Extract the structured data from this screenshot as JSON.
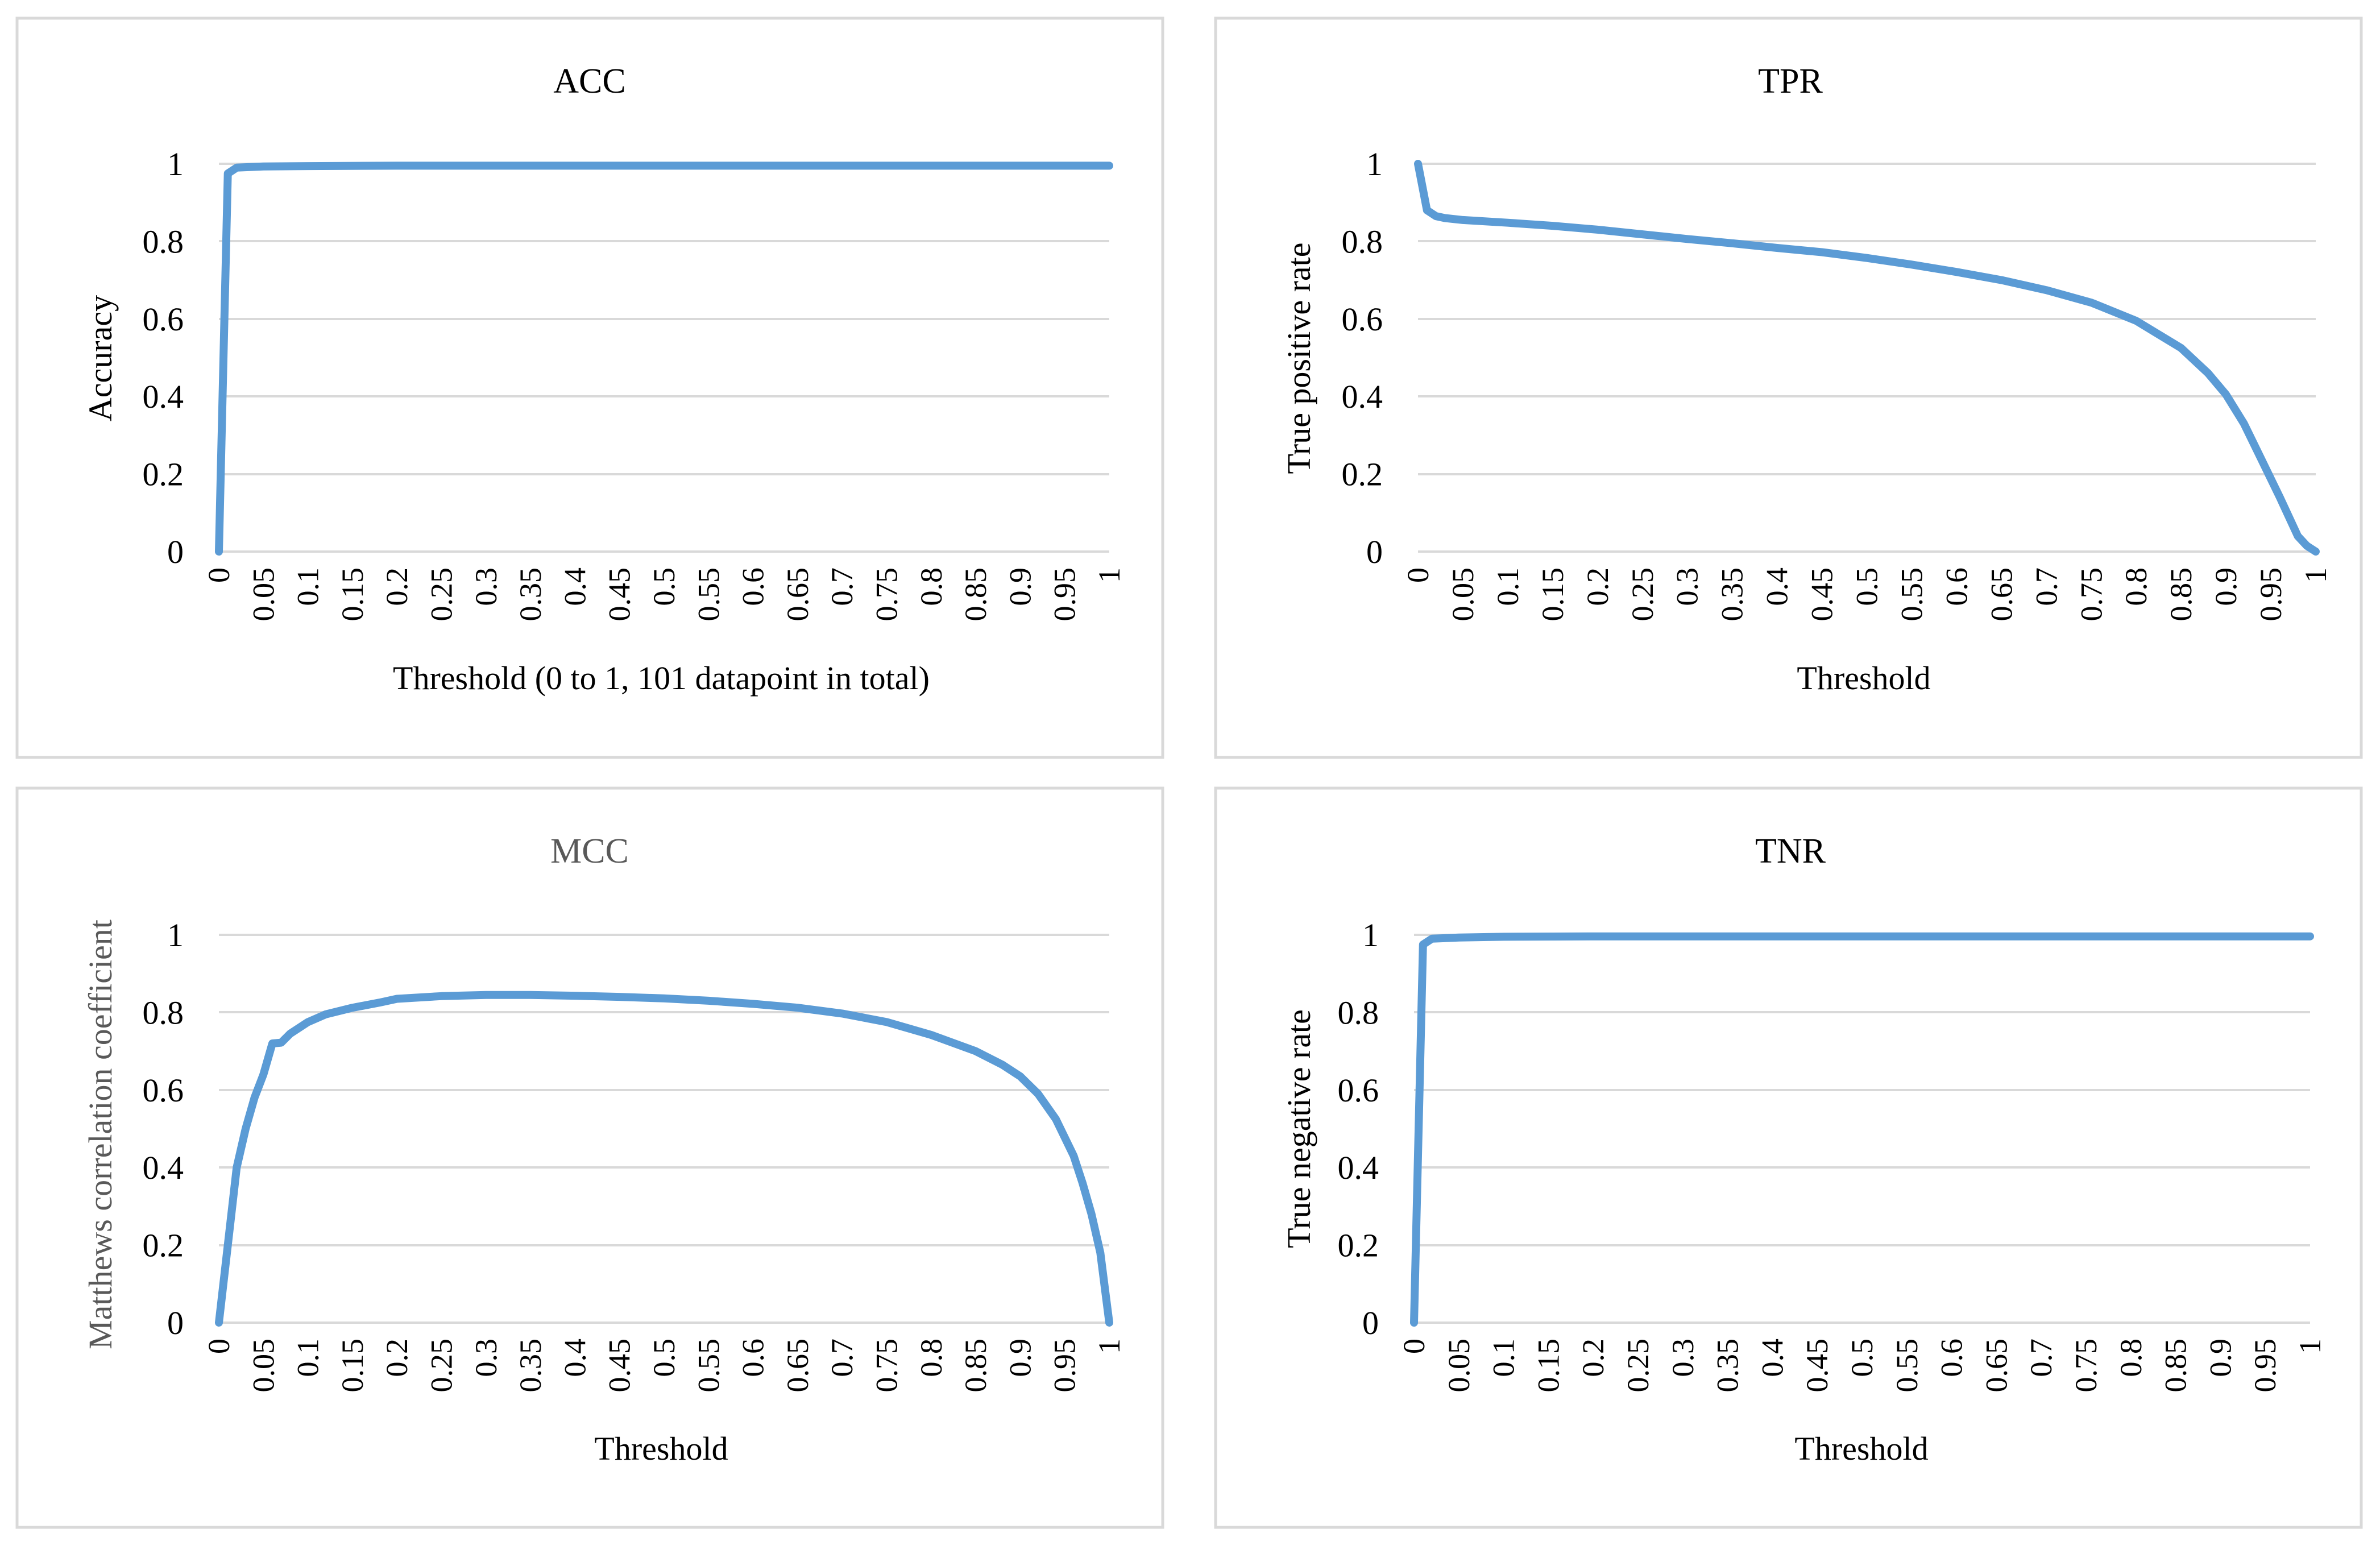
{
  "chart_data": [
    {
      "id": "acc",
      "type": "line",
      "title": "ACC",
      "xlabel": "Threshold (0 to 1, 101 datapoint in total)",
      "ylabel": "Accuracy",
      "ylim": [
        0,
        1
      ],
      "grid": true,
      "yticks": [
        "0",
        "0.2",
        "0.4",
        "0.6",
        "0.8",
        "1"
      ],
      "xticks": [
        "0",
        "0.05",
        "0.1",
        "0.15",
        "0.2",
        "0.25",
        "0.3",
        "0.35",
        "0.4",
        "0.45",
        "0.5",
        "0.55",
        "0.6",
        "0.65",
        "0.7",
        "0.75",
        "0.8",
        "0.85",
        "0.9",
        "0.95",
        "1"
      ],
      "series": [
        {
          "name": "ACC",
          "color": "#5b9bd5",
          "x": [
            0,
            0.01,
            0.02,
            0.05,
            0.1,
            0.2,
            0.3,
            0.4,
            0.5,
            0.6,
            0.7,
            0.8,
            0.9,
            0.95,
            1
          ],
          "y": [
            0,
            0.975,
            0.99,
            0.993,
            0.994,
            0.995,
            0.995,
            0.995,
            0.995,
            0.995,
            0.995,
            0.995,
            0.995,
            0.995,
            0.995
          ]
        }
      ]
    },
    {
      "id": "tpr",
      "type": "line",
      "title": "TPR",
      "xlabel": "Threshold",
      "ylabel": "True positive rate",
      "ylim": [
        0,
        1
      ],
      "grid": true,
      "yticks": [
        "0",
        "0.2",
        "0.4",
        "0.6",
        "0.8",
        "1"
      ],
      "xticks": [
        "0",
        "0.05",
        "0.1",
        "0.15",
        "0.2",
        "0.25",
        "0.3",
        "0.35",
        "0.4",
        "0.45",
        "0.5",
        "0.55",
        "0.6",
        "0.65",
        "0.7",
        "0.75",
        "0.8",
        "0.85",
        "0.9",
        "0.95",
        "1"
      ],
      "series": [
        {
          "name": "TPR",
          "color": "#5b9bd5",
          "x": [
            0,
            0.01,
            0.02,
            0.03,
            0.05,
            0.1,
            0.15,
            0.2,
            0.25,
            0.3,
            0.35,
            0.4,
            0.45,
            0.5,
            0.55,
            0.6,
            0.65,
            0.7,
            0.75,
            0.8,
            0.85,
            0.88,
            0.9,
            0.92,
            0.94,
            0.96,
            0.98,
            0.99,
            1
          ],
          "y": [
            1,
            0.88,
            0.865,
            0.86,
            0.855,
            0.848,
            0.84,
            0.83,
            0.818,
            0.806,
            0.795,
            0.783,
            0.772,
            0.757,
            0.74,
            0.721,
            0.7,
            0.674,
            0.642,
            0.595,
            0.525,
            0.46,
            0.405,
            0.33,
            0.235,
            0.14,
            0.04,
            0.015,
            0
          ]
        }
      ]
    },
    {
      "id": "mcc",
      "type": "line",
      "title": "MCC",
      "xlabel": "Threshold",
      "ylabel": "Matthews correlation coefficient",
      "ylim": [
        0,
        1
      ],
      "grid": true,
      "yticks": [
        "0",
        "0.2",
        "0.4",
        "0.6",
        "0.8",
        "1"
      ],
      "xticks": [
        "0",
        "0.05",
        "0.1",
        "0.15",
        "0.2",
        "0.25",
        "0.3",
        "0.35",
        "0.4",
        "0.45",
        "0.5",
        "0.55",
        "0.6",
        "0.65",
        "0.7",
        "0.75",
        "0.8",
        "0.85",
        "0.9",
        "0.95",
        "1"
      ],
      "series": [
        {
          "name": "MCC",
          "color": "#5b9bd5",
          "x": [
            0,
            0.01,
            0.02,
            0.03,
            0.04,
            0.05,
            0.06,
            0.07,
            0.08,
            0.1,
            0.12,
            0.15,
            0.18,
            0.2,
            0.25,
            0.3,
            0.35,
            0.4,
            0.45,
            0.5,
            0.55,
            0.6,
            0.65,
            0.7,
            0.75,
            0.8,
            0.85,
            0.88,
            0.9,
            0.92,
            0.94,
            0.96,
            0.97,
            0.98,
            0.99,
            1
          ],
          "y": [
            0,
            0.2,
            0.4,
            0.5,
            0.58,
            0.64,
            0.72,
            0.722,
            0.745,
            0.775,
            0.795,
            0.812,
            0.825,
            0.835,
            0.842,
            0.845,
            0.845,
            0.843,
            0.84,
            0.836,
            0.83,
            0.822,
            0.812,
            0.797,
            0.775,
            0.742,
            0.7,
            0.665,
            0.635,
            0.59,
            0.525,
            0.43,
            0.36,
            0.28,
            0.18,
            0
          ]
        }
      ]
    },
    {
      "id": "tnr",
      "type": "line",
      "title": "TNR",
      "xlabel": "Threshold",
      "ylabel": "True negative rate",
      "ylim": [
        0,
        1
      ],
      "grid": true,
      "yticks": [
        "0",
        "0.2",
        "0.4",
        "0.6",
        "0.8",
        "1"
      ],
      "xticks": [
        "0",
        "0.05",
        "0.1",
        "0.15",
        "0.2",
        "0.25",
        "0.3",
        "0.35",
        "0.4",
        "0.45",
        "0.5",
        "0.55",
        "0.6",
        "0.65",
        "0.7",
        "0.75",
        "0.8",
        "0.85",
        "0.9",
        "0.95",
        "1"
      ],
      "series": [
        {
          "name": "TNR",
          "color": "#5b9bd5",
          "x": [
            0,
            0.01,
            0.02,
            0.05,
            0.1,
            0.2,
            0.3,
            0.4,
            0.5,
            0.6,
            0.7,
            0.8,
            0.9,
            0.95,
            1
          ],
          "y": [
            0,
            0.975,
            0.99,
            0.993,
            0.995,
            0.996,
            0.996,
            0.996,
            0.996,
            0.996,
            0.996,
            0.996,
            0.996,
            0.996,
            0.996
          ]
        }
      ]
    }
  ]
}
